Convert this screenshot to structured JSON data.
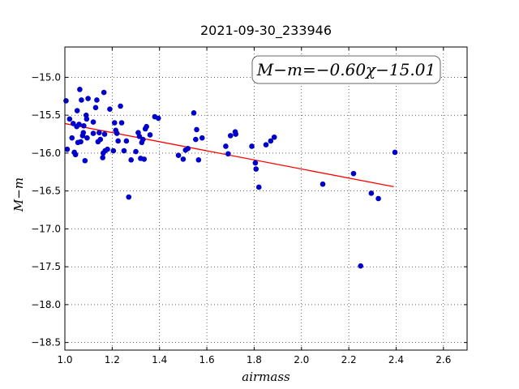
{
  "chart_data": {
    "type": "scatter",
    "title": "2021-09-30_233946",
    "xlabel": "airmass",
    "ylabel": "M−m",
    "xlim": [
      1.0,
      2.7
    ],
    "ylim": [
      -18.6,
      -14.6
    ],
    "xticks": [
      "1.0",
      "1.2",
      "1.4",
      "1.6",
      "1.8",
      "2.0",
      "2.2",
      "2.4",
      "2.6"
    ],
    "yticks": [
      "−15.0",
      "−15.5",
      "−16.0",
      "−16.5",
      "−17.0",
      "−17.5",
      "−18.0",
      "−18.5"
    ],
    "grid": true,
    "annotation": "M−m=−0.60χ−15.01",
    "fit_line": {
      "slope": -0.6,
      "intercept": -15.01,
      "x_range": [
        1.0,
        2.39
      ],
      "color": "#ff0000"
    },
    "marker_color": "#0000cc",
    "points": [
      [
        1.005,
        -15.31
      ],
      [
        1.01,
        -15.95
      ],
      [
        1.02,
        -15.55
      ],
      [
        1.03,
        -15.8
      ],
      [
        1.035,
        -15.61
      ],
      [
        1.04,
        -15.99
      ],
      [
        1.045,
        -16.02
      ],
      [
        1.05,
        -15.65
      ],
      [
        1.052,
        -15.44
      ],
      [
        1.055,
        -15.86
      ],
      [
        1.06,
        -15.62
      ],
      [
        1.063,
        -15.16
      ],
      [
        1.067,
        -15.85
      ],
      [
        1.07,
        -15.3
      ],
      [
        1.075,
        -15.77
      ],
      [
        1.078,
        -15.73
      ],
      [
        1.08,
        -15.64
      ],
      [
        1.085,
        -16.1
      ],
      [
        1.09,
        -15.5
      ],
      [
        1.092,
        -15.55
      ],
      [
        1.094,
        -15.8
      ],
      [
        1.098,
        -15.28
      ],
      [
        1.12,
        -15.59
      ],
      [
        1.12,
        -15.74
      ],
      [
        1.13,
        -15.4
      ],
      [
        1.135,
        -15.3
      ],
      [
        1.14,
        -15.85
      ],
      [
        1.145,
        -15.73
      ],
      [
        1.15,
        -15.82
      ],
      [
        1.16,
        -16.06
      ],
      [
        1.162,
        -16.0
      ],
      [
        1.165,
        -15.2
      ],
      [
        1.168,
        -15.75
      ],
      [
        1.17,
        -15.97
      ],
      [
        1.18,
        -15.95
      ],
      [
        1.19,
        -15.42
      ],
      [
        1.205,
        -15.97
      ],
      [
        1.21,
        -15.6
      ],
      [
        1.215,
        -15.7
      ],
      [
        1.22,
        -15.74
      ],
      [
        1.225,
        -15.84
      ],
      [
        1.235,
        -15.38
      ],
      [
        1.24,
        -15.6
      ],
      [
        1.25,
        -15.97
      ],
      [
        1.26,
        -15.84
      ],
      [
        1.27,
        -16.58
      ],
      [
        1.28,
        -16.09
      ],
      [
        1.3,
        -15.98
      ],
      [
        1.31,
        -15.73
      ],
      [
        1.315,
        -15.78
      ],
      [
        1.32,
        -16.07
      ],
      [
        1.325,
        -15.86
      ],
      [
        1.33,
        -15.82
      ],
      [
        1.335,
        -16.08
      ],
      [
        1.34,
        -15.68
      ],
      [
        1.345,
        -15.65
      ],
      [
        1.36,
        -15.76
      ],
      [
        1.38,
        -15.52
      ],
      [
        1.395,
        -15.54
      ],
      [
        1.48,
        -16.03
      ],
      [
        1.5,
        -16.08
      ],
      [
        1.51,
        -15.96
      ],
      [
        1.52,
        -15.94
      ],
      [
        1.545,
        -15.47
      ],
      [
        1.553,
        -15.82
      ],
      [
        1.557,
        -15.69
      ],
      [
        1.565,
        -16.09
      ],
      [
        1.58,
        -15.8
      ],
      [
        1.68,
        -15.91
      ],
      [
        1.69,
        -16.01
      ],
      [
        1.7,
        -15.77
      ],
      [
        1.72,
        -15.72
      ],
      [
        1.722,
        -15.75
      ],
      [
        1.79,
        -15.91
      ],
      [
        1.805,
        -16.13
      ],
      [
        1.808,
        -16.21
      ],
      [
        1.82,
        -16.45
      ],
      [
        1.85,
        -15.89
      ],
      [
        1.87,
        -15.84
      ],
      [
        1.885,
        -15.79
      ],
      [
        2.09,
        -16.41
      ],
      [
        2.22,
        -16.27
      ],
      [
        2.25,
        -17.49
      ],
      [
        2.295,
        -16.53
      ],
      [
        2.325,
        -16.6
      ],
      [
        2.395,
        -15.99
      ]
    ]
  }
}
